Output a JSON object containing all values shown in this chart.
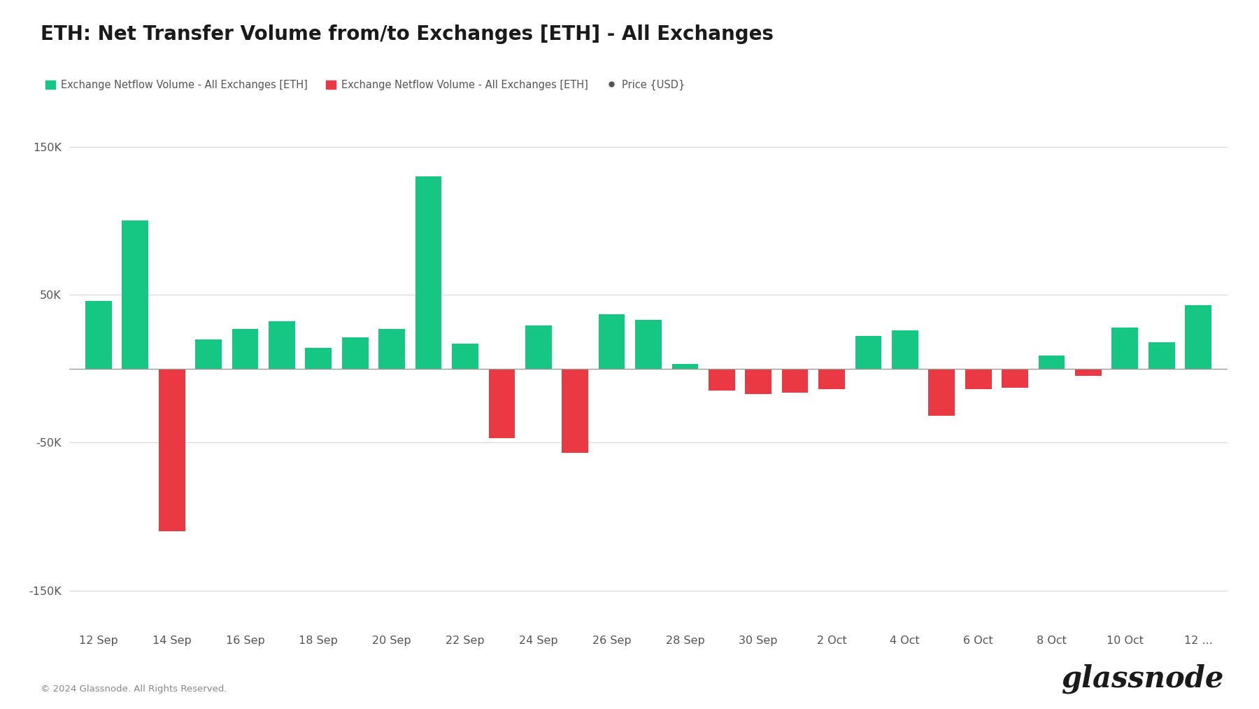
{
  "title": "ETH: Net Transfer Volume from/to Exchanges [ETH] - All Exchanges",
  "legend_items": [
    {
      "label": "Exchange Netflow Volume - All Exchanges [ETH]",
      "color": "#16c784",
      "type": "circle"
    },
    {
      "label": "Exchange Netflow Volume - All Exchanges [ETH]",
      "color": "#ea3943",
      "type": "circle"
    },
    {
      "label": "Price {USD}",
      "color": "#555555",
      "type": "line"
    }
  ],
  "values": [
    46000,
    100000,
    -110000,
    20000,
    27000,
    32000,
    14000,
    21000,
    27000,
    130000,
    17000,
    -47000,
    29000,
    -57000,
    37000,
    33000,
    3000,
    -15000,
    -17000,
    -16000,
    -14000,
    22000,
    26000,
    -32000,
    -14000,
    -13000,
    9000,
    -5000,
    28000,
    18000,
    43000
  ],
  "x_tick_labels": [
    "12 Sep",
    "14 Sep",
    "16 Sep",
    "18 Sep",
    "20 Sep",
    "22 Sep",
    "24 Sep",
    "26 Sep",
    "28 Sep",
    "30 Sep",
    "2 Oct",
    "4 Oct",
    "6 Oct",
    "8 Oct",
    "10 Oct",
    "12 ..."
  ],
  "x_tick_positions": [
    0,
    2,
    4,
    6,
    8,
    10,
    12,
    14,
    16,
    18,
    20,
    22,
    24,
    26,
    28,
    30
  ],
  "yticks": [
    -150000,
    -50000,
    50000,
    150000
  ],
  "ytick_labels": [
    "-150K",
    "-50K",
    "50K",
    "150K"
  ],
  "ylim": [
    -175000,
    175000
  ],
  "green_color": "#16c784",
  "red_color": "#ea3943",
  "background_color": "#ffffff",
  "grid_color": "#d8d8d8",
  "zero_line_color": "#999999",
  "title_fontsize": 20,
  "legend_fontsize": 10.5,
  "tick_fontsize": 11.5,
  "footer_text": "© 2024 Glassnode. All Rights Reserved.",
  "brand_text": "glassnode"
}
